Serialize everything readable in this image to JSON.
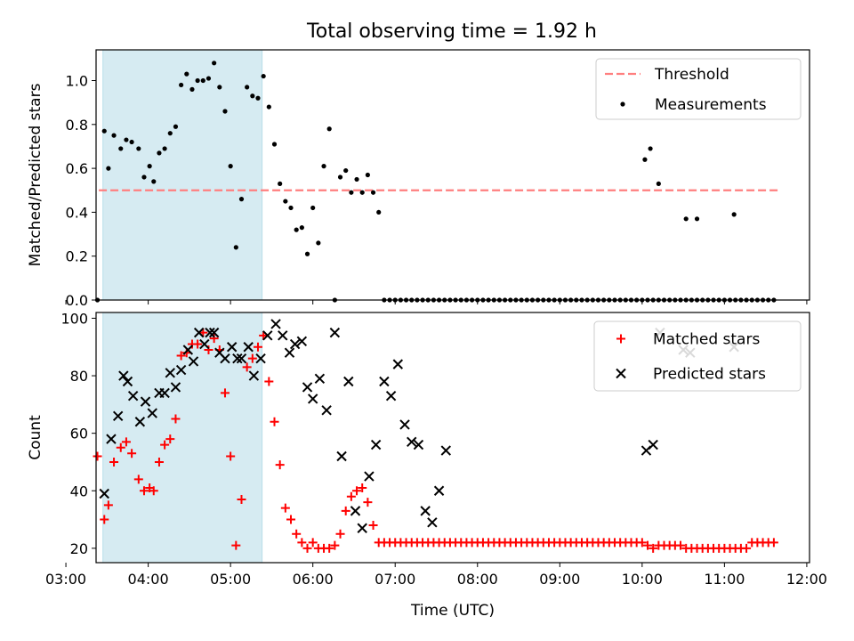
{
  "figure": {
    "title": "Total observing time = 1.92 h"
  },
  "chart_data": [
    {
      "type": "scatter",
      "ylabel": "Matched/Predicted stars",
      "xlabel": "",
      "xlim": [
        "03:22",
        "12:02"
      ],
      "ylim": [
        0,
        1.14
      ],
      "x_ticks": [
        "03:00",
        "04:00",
        "05:00",
        "06:00",
        "07:00",
        "08:00",
        "09:00",
        "10:00",
        "11:00",
        "12:00"
      ],
      "y_ticks": [
        "0.0",
        "0.2",
        "0.4",
        "0.6",
        "0.8",
        "1.0"
      ],
      "y_tick_values": [
        0,
        0.2,
        0.4,
        0.6,
        0.8,
        1.0
      ],
      "legend_position": "top-right",
      "shaded_region": {
        "x": [
          "03:27",
          "05:23"
        ],
        "color": "#add8e6"
      },
      "series": [
        {
          "name": "Threshold",
          "style": "dashed-line",
          "color": "#ff7f7f",
          "x": [
            "03:24",
            "11:39"
          ],
          "y": [
            0.5,
            0.5
          ]
        },
        {
          "name": "Measurements",
          "style": "dot",
          "color": "#000000",
          "x": [
            "03:23",
            "03:28",
            "03:31",
            "03:35",
            "03:40",
            "03:44",
            "03:48",
            "03:53",
            "03:57",
            "04:01",
            "04:04",
            "04:08",
            "04:12",
            "04:16",
            "04:20",
            "04:24",
            "04:28",
            "04:32",
            "04:36",
            "04:40",
            "04:44",
            "04:48",
            "04:52",
            "04:56",
            "05:00",
            "05:04",
            "05:08",
            "05:12",
            "05:16",
            "05:20",
            "05:24",
            "05:28",
            "05:32",
            "05:36",
            "05:40",
            "05:44",
            "05:48",
            "05:52",
            "05:56",
            "06:00",
            "06:04",
            "06:08",
            "06:12",
            "06:16",
            "06:20",
            "06:24",
            "06:28",
            "06:32",
            "06:36",
            "06:40",
            "06:44",
            "06:48",
            "06:52",
            "06:56",
            "07:00",
            "07:04",
            "07:08",
            "07:12",
            "07:16",
            "07:20",
            "07:24",
            "07:28",
            "07:32",
            "07:36",
            "07:40",
            "07:44",
            "07:48",
            "07:52",
            "07:56",
            "08:00",
            "08:04",
            "08:08",
            "08:12",
            "08:16",
            "08:20",
            "08:24",
            "08:28",
            "08:32",
            "08:36",
            "08:40",
            "08:44",
            "08:48",
            "08:52",
            "08:56",
            "09:00",
            "09:04",
            "09:08",
            "09:12",
            "09:16",
            "09:20",
            "09:24",
            "09:28",
            "09:32",
            "09:36",
            "09:40",
            "09:44",
            "09:48",
            "09:52",
            "09:56",
            "10:00",
            "10:04",
            "10:08",
            "10:12",
            "10:16",
            "10:20",
            "10:24",
            "10:28",
            "10:32",
            "10:36",
            "10:40",
            "10:44",
            "10:48",
            "10:52",
            "10:56",
            "11:00",
            "11:04",
            "11:08",
            "11:12",
            "11:16",
            "11:20",
            "11:24",
            "11:28",
            "11:32",
            "11:36"
          ],
          "y": [
            0.0,
            0.77,
            0.6,
            0.75,
            0.69,
            0.73,
            0.72,
            0.69,
            0.56,
            0.61,
            0.54,
            0.67,
            0.69,
            0.76,
            0.79,
            0.98,
            1.03,
            0.96,
            1.0,
            1.0,
            1.01,
            1.08,
            0.97,
            0.86,
            0.61,
            0.24,
            0.46,
            0.97,
            0.93,
            0.92,
            1.02,
            0.88,
            0.71,
            0.53,
            0.45,
            0.42,
            0.32,
            0.33,
            0.21,
            0.42,
            0.26,
            0.61,
            0.78,
            0.0,
            0.56,
            0.59,
            0.49,
            0.55,
            0.49,
            0.57,
            0.49,
            0.4,
            0.0,
            0.0,
            0.0,
            0.0,
            0.0,
            0.0,
            0.0,
            0.0,
            0.0,
            0.0,
            0.0,
            0.0,
            0.0,
            0.0,
            0.0,
            0.0,
            0.0,
            0.0,
            0.0,
            0.0,
            0.0,
            0.0,
            0.0,
            0.0,
            0.0,
            0.0,
            0.0,
            0.0,
            0.0,
            0.0,
            0.0,
            0.0,
            0.0,
            0.0,
            0.0,
            0.0,
            0.0,
            0.0,
            0.0,
            0.0,
            0.0,
            0.0,
            0.0,
            0.0,
            0.0,
            0.0,
            0.0,
            0.0,
            0.0,
            0.0,
            0.0,
            0.0,
            0.0,
            0.0,
            0.0,
            0.0,
            0.0,
            0.0,
            0.0,
            0.0,
            0.0,
            0.0,
            0.0,
            0.0,
            0.0,
            0.0,
            0.0,
            0.0,
            0.0,
            0.0,
            0.0,
            0.0
          ],
          "extra_points": {
            "x": [
              "10:02",
              "10:06",
              "10:12",
              "10:32",
              "10:40",
              "11:07"
            ],
            "y": [
              0.64,
              0.69,
              0.53,
              0.37,
              0.37,
              0.39
            ]
          }
        }
      ]
    },
    {
      "type": "scatter",
      "ylabel": "Count",
      "xlabel": "Time (UTC)",
      "xlim": [
        "03:22",
        "12:02"
      ],
      "ylim": [
        15,
        102
      ],
      "x_ticks": [
        "03:00",
        "04:00",
        "05:00",
        "06:00",
        "07:00",
        "08:00",
        "09:00",
        "10:00",
        "11:00",
        "12:00"
      ],
      "y_ticks": [
        "20",
        "40",
        "60",
        "80",
        "100"
      ],
      "y_tick_values": [
        20,
        40,
        60,
        80,
        100
      ],
      "legend_position": "top-right",
      "shaded_region": {
        "x": [
          "03:27",
          "05:23"
        ],
        "color": "#add8e6"
      },
      "series": [
        {
          "name": "Matched stars",
          "marker": "plus",
          "color": "#ff0000",
          "x": [
            "03:23",
            "03:28",
            "03:31",
            "03:35",
            "03:40",
            "03:44",
            "03:48",
            "03:53",
            "03:57",
            "04:01",
            "04:04",
            "04:08",
            "04:12",
            "04:16",
            "04:20",
            "04:24",
            "04:28",
            "04:32",
            "04:36",
            "04:40",
            "04:44",
            "04:48",
            "04:52",
            "04:56",
            "05:00",
            "05:04",
            "05:08",
            "05:12",
            "05:16",
            "05:20",
            "05:24",
            "05:28",
            "05:32",
            "05:36",
            "05:40",
            "05:44",
            "05:48",
            "05:52",
            "05:56",
            "06:00",
            "06:04",
            "06:08",
            "06:12",
            "06:16",
            "06:20",
            "06:24",
            "06:28",
            "06:32",
            "06:36",
            "06:40",
            "06:44",
            "06:48",
            "06:52",
            "06:56",
            "07:00",
            "07:04",
            "07:08",
            "07:12",
            "07:16",
            "07:20",
            "07:24",
            "07:28",
            "07:32",
            "07:36",
            "07:40",
            "07:44",
            "07:48",
            "07:52",
            "07:56",
            "08:00",
            "08:04",
            "08:08",
            "08:12",
            "08:16",
            "08:20",
            "08:24",
            "08:28",
            "08:32",
            "08:36",
            "08:40",
            "08:44",
            "08:48",
            "08:52",
            "08:56",
            "09:00",
            "09:04",
            "09:08",
            "09:12",
            "09:16",
            "09:20",
            "09:24",
            "09:28",
            "09:32",
            "09:36",
            "09:40",
            "09:44",
            "09:48",
            "09:52",
            "09:56",
            "10:00",
            "10:04",
            "10:08",
            "10:12",
            "10:16",
            "10:20",
            "10:24",
            "10:28",
            "10:32",
            "10:36",
            "10:40",
            "10:44",
            "10:48",
            "10:52",
            "10:56",
            "11:00",
            "11:04",
            "11:08",
            "11:12",
            "11:16",
            "11:20",
            "11:24",
            "11:28",
            "11:32",
            "11:36"
          ],
          "y": [
            52,
            30,
            35,
            50,
            55,
            57,
            53,
            44,
            40,
            41,
            40,
            50,
            56,
            58,
            65,
            87,
            88,
            91,
            91,
            95,
            89,
            93,
            89,
            74,
            52,
            21,
            37,
            83,
            86,
            90,
            94,
            78,
            64,
            49,
            34,
            30,
            25,
            22,
            20,
            22,
            20,
            20,
            20,
            21,
            25,
            33,
            38,
            40,
            41,
            36,
            28,
            22,
            22,
            22,
            22,
            22,
            22,
            22,
            22,
            22,
            22,
            22,
            22,
            22,
            22,
            22,
            22,
            22,
            22,
            22,
            22,
            22,
            22,
            22,
            22,
            22,
            22,
            22,
            22,
            22,
            22,
            22,
            22,
            22,
            22,
            22,
            22,
            22,
            22,
            22,
            22,
            22,
            22,
            22,
            22,
            22,
            22,
            22,
            22,
            22,
            21,
            20,
            21,
            21,
            21,
            21,
            21,
            20,
            20,
            20,
            20,
            20,
            20,
            20,
            20,
            20,
            20,
            20,
            20,
            22,
            22,
            22,
            22,
            22
          ]
        },
        {
          "name": "Predicted stars",
          "marker": "x",
          "color": "#000000",
          "x": [
            "03:28",
            "03:33",
            "03:38",
            "03:42",
            "03:45",
            "03:49",
            "03:54",
            "03:58",
            "04:03",
            "04:08",
            "04:12",
            "04:16",
            "04:20",
            "04:24",
            "04:29",
            "04:33",
            "04:37",
            "04:41",
            "04:45",
            "04:48",
            "04:52",
            "04:56",
            "05:01",
            "05:05",
            "05:08",
            "05:13",
            "05:17",
            "05:22",
            "05:27",
            "05:33",
            "05:38",
            "05:43",
            "05:47",
            "05:52",
            "05:56",
            "06:00",
            "06:05",
            "06:10",
            "06:16",
            "06:21",
            "06:26",
            "06:31",
            "06:36",
            "06:41",
            "06:46",
            "06:52",
            "06:57",
            "07:02",
            "07:07",
            "07:12",
            "07:17",
            "07:22",
            "07:27",
            "07:32",
            "07:37",
            "10:03",
            "10:08",
            "10:13",
            "10:30",
            "10:35",
            "11:07"
          ],
          "y": [
            39,
            58,
            66,
            80,
            78,
            73,
            64,
            71,
            67,
            74,
            74,
            81,
            76,
            82,
            89,
            85,
            95,
            91,
            95,
            95,
            88,
            86,
            90,
            86,
            86,
            90,
            80,
            86,
            94,
            98,
            94,
            88,
            91,
            92,
            76,
            72,
            79,
            68,
            95,
            52,
            78,
            33,
            27,
            45,
            56,
            78,
            73,
            84,
            63,
            57,
            56,
            33,
            29,
            40,
            54,
            54,
            56,
            95,
            89,
            88,
            90
          ]
        }
      ]
    }
  ]
}
